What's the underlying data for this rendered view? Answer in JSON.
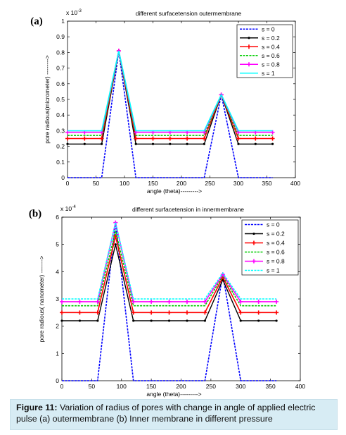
{
  "caption": {
    "label": "Figure 11:",
    "text": " Variation of  radius of pores with change in angle of applied electric pulse  (a) outermembrane (b) Inner membrane in different pressure"
  },
  "chart_data": [
    {
      "type": "line",
      "panel_label": "(a)",
      "title": "different surfacetension outermembrane",
      "xlabel": "angle (theta)--------->",
      "ylabel": "pore radious(micrometer) -------->",
      "exponent_label": "x 10-3",
      "x_ticks": [
        0,
        50,
        100,
        150,
        200,
        250,
        300,
        350,
        400
      ],
      "y_ticks": [
        0,
        0.1,
        0.2,
        0.3,
        0.4,
        0.5,
        0.6,
        0.7,
        0.8,
        0.9,
        1
      ],
      "xlim": [
        0,
        400
      ],
      "ylim": [
        0,
        1
      ],
      "legend_position": "top-right",
      "x": [
        0,
        30,
        60,
        90,
        120,
        150,
        180,
        210,
        240,
        270,
        300,
        330,
        360
      ],
      "series": [
        {
          "name": "s = 0",
          "color": "#0000ff",
          "dash": "3,1.5",
          "marker": "none",
          "values": [
            0,
            0,
            0,
            0.81,
            0,
            0,
            0,
            0,
            0,
            0.53,
            0,
            0,
            0
          ]
        },
        {
          "name": "s = 0.2",
          "color": "#000000",
          "dash": "",
          "marker": "dot",
          "values": [
            0.215,
            0.215,
            0.215,
            0.81,
            0.215,
            0.215,
            0.215,
            0.215,
            0.215,
            0.53,
            0.215,
            0.215,
            0.215
          ]
        },
        {
          "name": "s = 0.4",
          "color": "#ff0000",
          "dash": "",
          "marker": "plus",
          "values": [
            0.25,
            0.25,
            0.25,
            0.81,
            0.25,
            0.25,
            0.25,
            0.25,
            0.25,
            0.53,
            0.25,
            0.25,
            0.25
          ]
        },
        {
          "name": "s = 0.6",
          "color": "#00cc00",
          "dash": "3,1.5",
          "marker": "none",
          "values": [
            0.27,
            0.27,
            0.27,
            0.81,
            0.27,
            0.27,
            0.27,
            0.27,
            0.27,
            0.53,
            0.27,
            0.27,
            0.27
          ]
        },
        {
          "name": "s = 0.8",
          "color": "#ff00ff",
          "dash": "",
          "marker": "plus",
          "values": [
            0.29,
            0.29,
            0.29,
            0.81,
            0.29,
            0.29,
            0.29,
            0.29,
            0.29,
            0.53,
            0.29,
            0.29,
            0.29
          ]
        },
        {
          "name": "s = 1",
          "color": "#00ffff",
          "dash": "",
          "marker": "none",
          "values": [
            0.3,
            0.3,
            0.3,
            0.81,
            0.3,
            0.3,
            0.3,
            0.3,
            0.3,
            0.53,
            0.3,
            0.3,
            0.3
          ]
        }
      ]
    },
    {
      "type": "line",
      "panel_label": "(b)",
      "title": "different surfacetension in innermembrane",
      "xlabel": "angle (theta)--------->",
      "ylabel": "pore radious( nanometer) ------->",
      "exponent_label": "x 10-4",
      "x_ticks": [
        0,
        50,
        100,
        150,
        200,
        250,
        300,
        350,
        400
      ],
      "y_ticks": [
        0,
        1,
        2,
        3,
        4,
        5,
        6
      ],
      "xlim": [
        0,
        400
      ],
      "ylim": [
        0,
        6
      ],
      "legend_position": "top-right",
      "x": [
        0,
        30,
        60,
        90,
        120,
        150,
        180,
        210,
        240,
        270,
        300,
        330,
        360
      ],
      "series": [
        {
          "name": "s = 0",
          "color": "#0000ff",
          "dash": "3,1.5",
          "marker": "none",
          "values": [
            0,
            0,
            0,
            5.8,
            0,
            0,
            0,
            0,
            0,
            3.9,
            0,
            0,
            0
          ]
        },
        {
          "name": "s = 0.2",
          "color": "#000000",
          "dash": "",
          "marker": "dot",
          "values": [
            2.2,
            2.2,
            2.2,
            5.0,
            2.2,
            2.2,
            2.2,
            2.2,
            2.2,
            3.7,
            2.2,
            2.2,
            2.2
          ]
        },
        {
          "name": "s = 0.4",
          "color": "#ff0000",
          "dash": "",
          "marker": "plus",
          "values": [
            2.5,
            2.5,
            2.5,
            5.3,
            2.5,
            2.5,
            2.5,
            2.5,
            2.5,
            3.8,
            2.5,
            2.5,
            2.5
          ]
        },
        {
          "name": "s = 0.6",
          "color": "#00cc00",
          "dash": "3,1.5",
          "marker": "none",
          "values": [
            2.75,
            2.75,
            2.75,
            5.5,
            2.75,
            2.75,
            2.75,
            2.75,
            2.75,
            3.85,
            2.75,
            2.75,
            2.75
          ]
        },
        {
          "name": "s = 0.8",
          "color": "#ff00ff",
          "dash": "",
          "marker": "plus",
          "values": [
            2.9,
            2.9,
            2.9,
            5.8,
            2.9,
            2.9,
            2.9,
            2.9,
            2.9,
            3.9,
            2.9,
            2.9,
            2.9
          ]
        },
        {
          "name": "s = 1",
          "color": "#00ffff",
          "dash": "3,1.5",
          "marker": "none",
          "values": [
            3.0,
            3.0,
            3.0,
            5.8,
            3.0,
            3.0,
            3.0,
            3.0,
            3.0,
            3.95,
            3.0,
            3.0,
            3.0
          ]
        }
      ]
    }
  ]
}
